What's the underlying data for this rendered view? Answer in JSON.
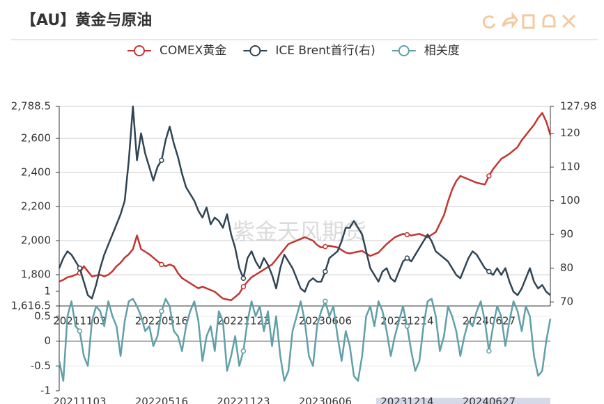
{
  "chart_data": [
    {
      "type": "line",
      "title": "【AU】黄金与原油",
      "watermark": "紫金天风期货",
      "categories": [
        null,
        null,
        null,
        null,
        null,
        "20211103",
        null,
        null,
        null,
        null,
        null,
        null,
        null,
        null,
        null,
        null,
        null,
        null,
        null,
        null,
        null,
        null,
        null,
        null,
        null,
        "20220516",
        null,
        null,
        null,
        null,
        null,
        null,
        null,
        null,
        null,
        null,
        null,
        null,
        null,
        null,
        null,
        null,
        null,
        null,
        null,
        "20221123",
        null,
        null,
        null,
        null,
        null,
        null,
        null,
        null,
        null,
        null,
        null,
        null,
        null,
        null,
        null,
        null,
        null,
        null,
        null,
        "20230606",
        null,
        null,
        null,
        null,
        null,
        null,
        null,
        null,
        null,
        null,
        null,
        null,
        null,
        null,
        null,
        null,
        null,
        null,
        null,
        "20231214",
        null,
        null,
        null,
        null,
        null,
        null,
        null,
        null,
        null,
        null,
        null,
        null,
        null,
        null,
        null,
        null,
        null,
        null,
        null,
        "20240627",
        null,
        null,
        null,
        null,
        null,
        null,
        null,
        null,
        null,
        null,
        null,
        null,
        null,
        null,
        null
      ],
      "series": [
        {
          "name": "COMEX黄金",
          "color": "#c23531",
          "values": [
            1760,
            1770,
            1785,
            1790,
            1800,
            1810,
            1850,
            1820,
            1790,
            1795,
            1800,
            1790,
            1800,
            1820,
            1850,
            1870,
            1900,
            1920,
            1950,
            2030,
            1950,
            1935,
            1920,
            1900,
            1880,
            1860,
            1850,
            1860,
            1850,
            1810,
            1780,
            1765,
            1750,
            1735,
            1720,
            1730,
            1720,
            1710,
            1700,
            1680,
            1660,
            1655,
            1650,
            1670,
            1690,
            1730,
            1760,
            1785,
            1800,
            1815,
            1830,
            1845,
            1860,
            1890,
            1920,
            1950,
            1980,
            1990,
            2000,
            2010,
            2020,
            2010,
            2000,
            1975,
            1960,
            1965,
            1970,
            1965,
            1960,
            1945,
            1930,
            1925,
            1930,
            1935,
            1940,
            1925,
            1910,
            1920,
            1930,
            1955,
            1980,
            2000,
            2020,
            2030,
            2040,
            2035,
            2030,
            2035,
            2040,
            2030,
            2020,
            2035,
            2050,
            2100,
            2150,
            2230,
            2300,
            2350,
            2380,
            2370,
            2360,
            2350,
            2340,
            2335,
            2330,
            2380,
            2420,
            2450,
            2480,
            2495,
            2510,
            2530,
            2550,
            2590,
            2620,
            2650,
            2680,
            2720,
            2750,
            2700,
            2620
          ]
        },
        {
          "name": "ICE Brent首行(右)",
          "color": "#2f4554",
          "axis": "y2",
          "values": [
            80,
            83,
            85,
            84,
            82,
            80,
            76,
            72,
            71,
            75,
            80,
            84,
            87,
            90,
            93,
            96,
            100,
            112,
            127.98,
            112,
            120,
            114,
            110,
            106,
            110,
            112,
            118,
            122,
            117,
            113,
            108,
            104,
            102,
            100,
            97,
            95,
            98,
            93,
            95,
            94,
            92,
            96,
            90,
            86,
            80,
            77,
            83,
            85,
            82,
            80,
            83,
            81,
            78,
            74,
            80,
            84,
            82,
            80,
            77,
            74,
            73,
            76,
            77,
            76,
            76,
            79,
            83,
            84,
            85,
            88,
            92,
            92,
            94,
            92,
            90,
            85,
            80,
            78,
            76,
            79,
            80,
            77,
            76,
            79,
            82,
            83,
            82,
            84,
            86,
            88,
            90,
            88,
            85,
            84,
            83,
            82,
            80,
            78,
            77,
            80,
            83,
            85,
            84,
            82,
            80,
            79,
            78,
            80,
            78,
            80,
            76,
            73,
            72,
            74,
            77,
            80,
            76,
            74,
            75,
            73,
            72
          ]
        }
      ],
      "ylim": [
        1616.5,
        2788.5
      ],
      "yticks": [
        {
          "value": 1616.5,
          "label": "1,616.5"
        },
        {
          "value": 1800,
          "label": "1,800"
        },
        {
          "value": 2000,
          "label": "2,000"
        },
        {
          "value": 2200,
          "label": "2,200"
        },
        {
          "value": 2400,
          "label": "2,400"
        },
        {
          "value": 2600,
          "label": "2,600"
        },
        {
          "value": 2788.5,
          "label": "2,788.5"
        }
      ],
      "y2lim": [
        68.8,
        127.98
      ],
      "y2ticks": [
        70,
        80,
        90,
        100,
        110,
        120,
        127.98
      ],
      "grid": true
    },
    {
      "type": "line",
      "categories": [
        null,
        null,
        null,
        null,
        null,
        "20211103",
        null,
        null,
        null,
        null,
        null,
        null,
        null,
        null,
        null,
        null,
        null,
        null,
        null,
        null,
        null,
        null,
        null,
        null,
        null,
        "20220516",
        null,
        null,
        null,
        null,
        null,
        null,
        null,
        null,
        null,
        null,
        null,
        null,
        null,
        null,
        null,
        null,
        null,
        null,
        null,
        "20221123",
        null,
        null,
        null,
        null,
        null,
        null,
        null,
        null,
        null,
        null,
        null,
        null,
        null,
        null,
        null,
        null,
        null,
        null,
        null,
        "20230606",
        null,
        null,
        null,
        null,
        null,
        null,
        null,
        null,
        null,
        null,
        null,
        null,
        null,
        null,
        null,
        null,
        null,
        null,
        null,
        "20231214",
        null,
        null,
        null,
        null,
        null,
        null,
        null,
        null,
        null,
        null,
        null,
        null,
        null,
        null,
        null,
        null,
        null,
        null,
        null,
        "20240627",
        null,
        null,
        null,
        null,
        null,
        null,
        null,
        null,
        null,
        null,
        null,
        null,
        null,
        null,
        null
      ],
      "series": [
        {
          "name": "相关度",
          "color": "#61a0a8",
          "values": [
            -0.4,
            -0.8,
            0.5,
            0.8,
            0.3,
            0.2,
            -0.3,
            -0.5,
            0.4,
            0.7,
            0.6,
            0.3,
            0.8,
            0.5,
            0.3,
            -0.3,
            0.4,
            0.8,
            0.85,
            0.7,
            0.5,
            0.2,
            0.3,
            -0.1,
            0.1,
            0.6,
            0.85,
            0.7,
            0.2,
            0.1,
            -0.2,
            0.3,
            0.6,
            0.8,
            0.4,
            -0.4,
            0.1,
            0.3,
            -0.2,
            0.6,
            0.4,
            -0.6,
            -0.3,
            0.1,
            -0.5,
            -0.2,
            0.4,
            0.8,
            0.5,
            0.7,
            0.2,
            0.6,
            -0.1,
            0.5,
            -0.3,
            -0.8,
            -0.6,
            0.2,
            0.5,
            0.8,
            0.4,
            -0.3,
            -0.5,
            0.3,
            0.6,
            0.8,
            0.5,
            0.7,
            0.1,
            -0.4,
            0.2,
            -0.1,
            -0.7,
            -0.8,
            -0.3,
            0.5,
            0.7,
            0.3,
            0.8,
            0.6,
            0.2,
            -0.3,
            0.1,
            0.4,
            0.7,
            0.3,
            -0.2,
            -0.6,
            -0.4,
            0.3,
            0.8,
            0.85,
            0.5,
            -0.2,
            0.1,
            0.7,
            0.5,
            0.2,
            -0.3,
            0.1,
            0.4,
            0.3,
            0.6,
            0.8,
            0.4,
            -0.2,
            0.3,
            0.7,
            0.5,
            -0.1,
            0.4,
            0.8,
            0.6,
            0.2,
            0.7,
            0.5,
            -0.3,
            -0.7,
            -0.6,
            0.0,
            0.45
          ]
        }
      ],
      "ylim": [
        -1,
        1
      ],
      "yticks": [
        -1,
        -0.5,
        0,
        0.5,
        1
      ]
    }
  ]
}
